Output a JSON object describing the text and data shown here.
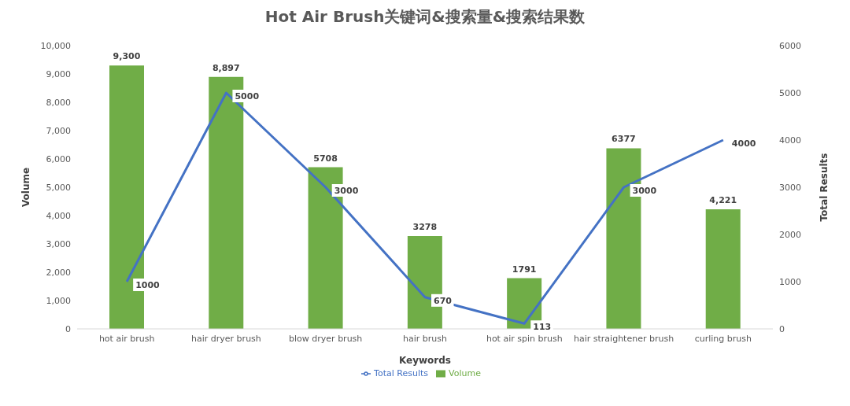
{
  "chart_data": {
    "type": "bar",
    "title": "Hot Air Brush关键词&搜索量&搜索结果数",
    "xlabel": "Keywords",
    "ylabel": "Volume",
    "y2label": "Total Results",
    "categories": [
      "hot air brush",
      "hair dryer brush",
      "blow dryer brush",
      "hair brush",
      "hot air spin brush",
      "hair straightener brush",
      "curling brush"
    ],
    "series": [
      {
        "name": "Volume",
        "color": "#70ad47",
        "values": [
          9300,
          8897,
          5708,
          3278,
          1791,
          6377,
          4221
        ],
        "value_labels": [
          "9,300",
          "8,897",
          "5708",
          "3278",
          "1791",
          "6377",
          "4,221"
        ]
      },
      {
        "name": "Total Results",
        "type": "line",
        "axis": "y2",
        "color": "#4472c4",
        "values": [
          1000,
          5000,
          3000,
          670,
          113,
          3000,
          4000
        ],
        "value_labels": [
          "1000",
          "5000",
          "3000",
          "670",
          "113",
          "3000",
          "4000"
        ],
        "marker": "none",
        "line_style": "solid"
      }
    ],
    "ylim": [
      0,
      10000
    ],
    "yticks": [
      0,
      {
        "value": 1000,
        "label": "1,000"
      },
      {
        "value": 2000,
        "label": "2,000"
      },
      {
        "value": 3000,
        "label": "3,000"
      },
      {
        "value": 4000,
        "label": "4,000"
      },
      {
        "value": 5000,
        "label": "5,000"
      },
      {
        "value": 6000,
        "label": "6,000"
      },
      {
        "value": 7000,
        "label": "7,000"
      },
      {
        "value": 8000,
        "label": "8,000"
      },
      {
        "value": 9000,
        "label": "9,000"
      },
      {
        "value": 10000,
        "label": "10,000"
      }
    ],
    "y2lim": [
      0,
      6000
    ],
    "y2ticks": [
      0,
      1000,
      2000,
      3000,
      4000,
      5000,
      6000
    ],
    "grid": false,
    "legend": "bottom"
  }
}
